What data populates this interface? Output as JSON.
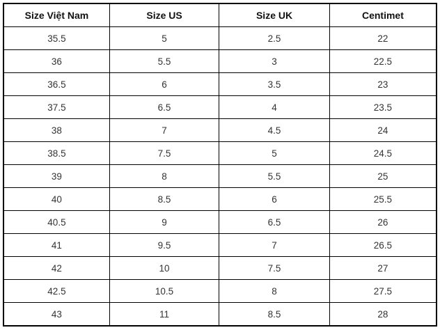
{
  "table": {
    "headers": [
      "Size Việt Nam",
      "Size US",
      "Size UK",
      "Centimet"
    ],
    "rows": [
      [
        "35.5",
        "5",
        "2.5",
        "22"
      ],
      [
        "36",
        "5.5",
        "3",
        "22.5"
      ],
      [
        "36.5",
        "6",
        "3.5",
        "23"
      ],
      [
        "37.5",
        "6.5",
        "4",
        "23.5"
      ],
      [
        "38",
        "7",
        "4.5",
        "24"
      ],
      [
        "38.5",
        "7.5",
        "5",
        "24.5"
      ],
      [
        "39",
        "8",
        "5.5",
        "25"
      ],
      [
        "40",
        "8.5",
        "6",
        "25.5"
      ],
      [
        "40.5",
        "9",
        "6.5",
        "26"
      ],
      [
        "41",
        "9.5",
        "7",
        "26.5"
      ],
      [
        "42",
        "10",
        "7.5",
        "27"
      ],
      [
        "42.5",
        "10.5",
        "8",
        "27.5"
      ],
      [
        "43",
        "11",
        "8.5",
        "28"
      ]
    ]
  },
  "colors": {
    "border": "#000000",
    "header_text": "#111111",
    "cell_text": "#333333",
    "background": "#ffffff"
  }
}
